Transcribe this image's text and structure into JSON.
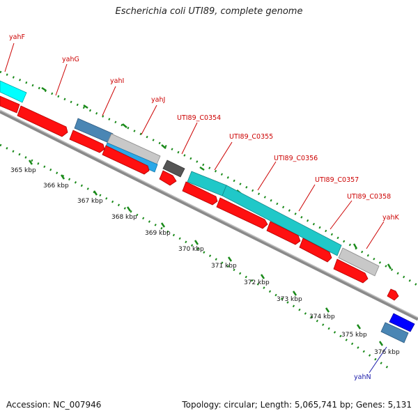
{
  "title": "Escherichia coli UTI89, complete genome",
  "footer": {
    "accession": "Accession: NC_007946",
    "topology": "Topology: circular; Length: 5,065,741 bp; Genes: 5,131"
  },
  "colors": {
    "forward_cds": "#ff0000",
    "cyan_cds": "#00ffff",
    "teal_cds": "#20c8c8",
    "steel_cds": "#4a86b4",
    "light_blue_cds": "#2aa8e8",
    "light_gray_cds": "#c8c8c8",
    "dark_gray_cds": "#555555",
    "blue_cds": "#0000ff",
    "dotted_ring": "#1a8a1a",
    "backbone": "#888888",
    "label_red": "#cc0000",
    "label_blue": "#1a1aaa"
  },
  "ticks": [
    "365 kbp",
    "366 kbp",
    "367 kbp",
    "368 kbp",
    "369 kbp",
    "370 kbp",
    "371 kbp",
    "372 kbp",
    "373 kbp",
    "374 kbp",
    "375 kbp",
    "376 kbp"
  ],
  "gene_labels": [
    {
      "text": "yahF",
      "color": "red"
    },
    {
      "text": "yahG",
      "color": "red"
    },
    {
      "text": "yahI",
      "color": "red"
    },
    {
      "text": "yahJ",
      "color": "red"
    },
    {
      "text": "UTI89_C0354",
      "color": "red"
    },
    {
      "text": "UTI89_C0355",
      "color": "red"
    },
    {
      "text": "UTI89_C0356",
      "color": "red"
    },
    {
      "text": "UTI89_C0357",
      "color": "red"
    },
    {
      "text": "UTI89_C0358",
      "color": "red"
    },
    {
      "text": "yahK",
      "color": "red"
    },
    {
      "text": "yahN",
      "color": "blue"
    }
  ]
}
